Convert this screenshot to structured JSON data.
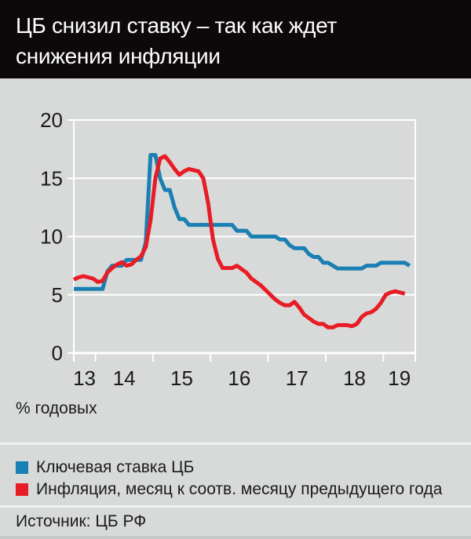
{
  "header": {
    "title_line1": "ЦБ снизил ставку – так как ждет",
    "title_line2": "снижения инфляции"
  },
  "chart_data": {
    "type": "line",
    "title": "ЦБ снизил ставку – так как ждет снижения инфляции",
    "ylabel_note": "% годовых",
    "grid": true,
    "legend_position": "bottom",
    "colors": {
      "background": "#d8dada",
      "header_background": "#0d090a",
      "grid": "#ffffff",
      "text": "#1a1a1a"
    },
    "y_axis": {
      "range": [
        0,
        20
      ],
      "ticks": [
        0,
        5,
        10,
        15,
        20
      ]
    },
    "x_axis": {
      "range": [
        2013.625,
        2019.556
      ],
      "tick_years": [
        2014,
        2015,
        2016,
        2017,
        2018,
        2019
      ],
      "labels": [
        {
          "text": "13",
          "x": 2013.81
        },
        {
          "text": "14",
          "x": 2014.5
        },
        {
          "text": "15",
          "x": 2015.5
        },
        {
          "text": "16",
          "x": 2016.5
        },
        {
          "text": "17",
          "x": 2017.5
        },
        {
          "text": "18",
          "x": 2018.5
        },
        {
          "text": "19",
          "x": 2019.28
        }
      ]
    },
    "series": [
      {
        "id": "key-rate",
        "name": "Ключевая ставка ЦБ",
        "color": "#1a7fb2",
        "start_month": "2013-08",
        "values": [
          5.5,
          5.5,
          5.5,
          5.5,
          5.5,
          5.5,
          5.5,
          7,
          7.5,
          7.5,
          7.5,
          8,
          8,
          8,
          8,
          9.5,
          17,
          17,
          15,
          14,
          14,
          12.5,
          11.5,
          11.5,
          11,
          11,
          11,
          11,
          11,
          11,
          11,
          11,
          11,
          11,
          10.5,
          10.5,
          10.5,
          10,
          10,
          10,
          10,
          10,
          10,
          9.75,
          9.75,
          9.25,
          9,
          9,
          9,
          8.5,
          8.25,
          8.25,
          7.75,
          7.75,
          7.5,
          7.25,
          7.25,
          7.25,
          7.25,
          7.25,
          7.25,
          7.5,
          7.5,
          7.5,
          7.75,
          7.75,
          7.75,
          7.75,
          7.75,
          7.75,
          7.5
        ]
      },
      {
        "id": "inflation",
        "name": "Инфляция, месяц к соотв. месяцу предыдущего года",
        "color": "#e81c25",
        "start_month": "2013-08",
        "values": [
          6.3,
          6.5,
          6.6,
          6.5,
          6.4,
          6.1,
          6.2,
          6.9,
          7.3,
          7.6,
          7.8,
          7.5,
          7.6,
          8,
          8.3,
          9.1,
          11.4,
          15,
          16.7,
          16.9,
          16.4,
          15.8,
          15.3,
          15.6,
          15.8,
          15.7,
          15.6,
          15,
          12.9,
          9.8,
          8.1,
          7.3,
          7.3,
          7.3,
          7.5,
          7.2,
          6.9,
          6.4,
          6.1,
          5.8,
          5.4,
          5,
          4.6,
          4.3,
          4.1,
          4.1,
          4.4,
          3.9,
          3.3,
          3,
          2.7,
          2.5,
          2.5,
          2.2,
          2.2,
          2.4,
          2.4,
          2.4,
          2.3,
          2.5,
          3.1,
          3.4,
          3.5,
          3.8,
          4.3,
          5,
          5.2,
          5.3,
          5.2,
          5.1
        ]
      }
    ]
  },
  "source": "Источник: ЦБ РФ"
}
